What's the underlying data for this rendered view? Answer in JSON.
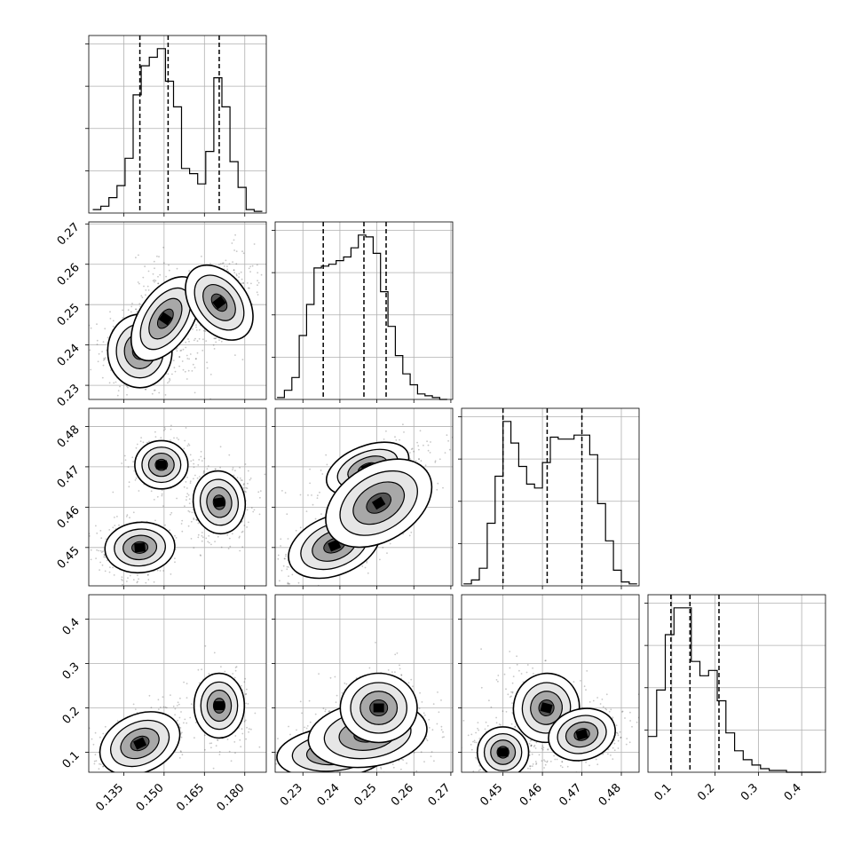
{
  "chart_data": {
    "type": "corner",
    "title": "",
    "grid": true,
    "parameters": [
      {
        "xlim": [
          0.122,
          0.188
        ],
        "ticks": [
          0.135,
          0.15,
          0.165,
          0.18
        ],
        "tick_labels": [
          "0.135",
          "0.150",
          "0.165",
          "0.180"
        ],
        "quantiles": [
          0.141,
          0.1515,
          0.1705
        ],
        "hist": {
          "x": [
            0.125,
            0.128,
            0.131,
            0.134,
            0.137,
            0.14,
            0.143,
            0.146,
            0.149,
            0.152,
            0.155,
            0.158,
            0.161,
            0.164,
            0.167,
            0.17,
            0.173,
            0.176,
            0.179,
            0.182,
            0.185
          ],
          "counts": [
            0.02,
            0.04,
            0.09,
            0.16,
            0.32,
            0.69,
            0.86,
            0.91,
            0.96,
            0.77,
            0.62,
            0.26,
            0.23,
            0.17,
            0.36,
            0.79,
            0.62,
            0.3,
            0.15,
            0.02,
            0.01
          ]
        }
      },
      {
        "ylim": [
          0.2265,
          0.2705
        ],
        "xlim": [
          0.2225,
          0.2705
        ],
        "ticks": [
          0.23,
          0.24,
          0.25,
          0.26,
          0.27
        ],
        "tick_labels": [
          "0.23",
          "0.24",
          "0.25",
          "0.26",
          "0.27"
        ],
        "quantiles": [
          0.2355,
          0.2465,
          0.2525
        ],
        "hist": {
          "x": [
            0.224,
            0.226,
            0.228,
            0.23,
            0.232,
            0.234,
            0.236,
            0.238,
            0.24,
            0.242,
            0.244,
            0.246,
            0.248,
            0.25,
            0.252,
            0.254,
            0.256,
            0.258,
            0.26,
            0.262,
            0.264,
            0.266,
            0.268
          ],
          "counts": [
            0.01,
            0.05,
            0.12,
            0.35,
            0.52,
            0.72,
            0.73,
            0.74,
            0.76,
            0.78,
            0.83,
            0.9,
            0.89,
            0.8,
            0.59,
            0.4,
            0.24,
            0.14,
            0.08,
            0.03,
            0.02,
            0.01,
            0.0
          ]
        }
      },
      {
        "ylim": [
          0.4405,
          0.4845
        ],
        "xlim": [
          0.4395,
          0.4845
        ],
        "ticks": [
          0.45,
          0.46,
          0.47,
          0.48
        ],
        "tick_labels": [
          "0.45",
          "0.46",
          "0.47",
          "0.48"
        ],
        "quantiles": [
          0.45,
          0.4612,
          0.47
        ],
        "hist": {
          "x": [
            0.441,
            0.443,
            0.445,
            0.447,
            0.449,
            0.451,
            0.453,
            0.455,
            0.457,
            0.459,
            0.461,
            0.463,
            0.465,
            0.467,
            0.469,
            0.471,
            0.473,
            0.475,
            0.477,
            0.479,
            0.481,
            0.483
          ],
          "counts": [
            0.01,
            0.03,
            0.09,
            0.32,
            0.56,
            0.84,
            0.73,
            0.61,
            0.52,
            0.5,
            0.63,
            0.76,
            0.75,
            0.75,
            0.77,
            0.77,
            0.67,
            0.42,
            0.23,
            0.08,
            0.02,
            0.01
          ]
        }
      },
      {
        "ylim": [
          0.055,
          0.455
        ],
        "xlim": [
          0.045,
          0.455
        ],
        "ticks": [
          0.1,
          0.2,
          0.3,
          0.4
        ],
        "tick_labels": [
          "0.1",
          "0.2",
          "0.3",
          "0.4"
        ],
        "quantiles": [
          0.098,
          0.142,
          0.209
        ],
        "hist": {
          "x": [
            0.055,
            0.075,
            0.095,
            0.115,
            0.135,
            0.155,
            0.175,
            0.195,
            0.215,
            0.235,
            0.255,
            0.275,
            0.295,
            0.315,
            0.335,
            0.355,
            0.375,
            0.395,
            0.415,
            0.435
          ],
          "counts": [
            0.2,
            0.46,
            0.77,
            0.92,
            0.92,
            0.62,
            0.54,
            0.57,
            0.4,
            0.22,
            0.12,
            0.07,
            0.04,
            0.02,
            0.01,
            0.01,
            0.0,
            0.0,
            0.0,
            0.0
          ]
        }
      }
    ],
    "modes": {
      "p0": [
        0.141,
        0.149,
        0.15,
        0.1705
      ],
      "p1": [
        0.2385,
        0.2475,
        0.247,
        0.2505
      ],
      "p2": [
        0.45,
        0.4705,
        0.464,
        0.4612
      ],
      "p3": [
        0.13,
        0.12,
        0.14,
        0.205
      ]
    }
  }
}
